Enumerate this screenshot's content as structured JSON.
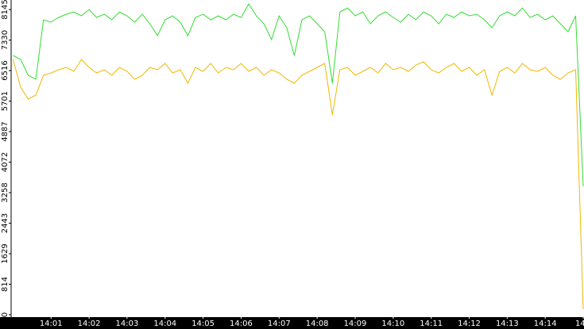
{
  "chart_data": {
    "type": "line",
    "x": [
      0,
      0.2,
      0.4,
      0.6,
      0.8,
      1,
      1.2,
      1.4,
      1.6,
      1.8,
      2,
      2.2,
      2.4,
      2.6,
      2.8,
      3,
      3.2,
      3.4,
      3.6,
      3.8,
      4,
      4.2,
      4.4,
      4.6,
      4.8,
      5,
      5.2,
      5.4,
      5.6,
      5.8,
      6,
      6.2,
      6.4,
      6.6,
      6.8,
      7,
      7.2,
      7.4,
      7.6,
      7.8,
      8,
      8.2,
      8.4,
      8.6,
      8.8,
      9,
      9.2,
      9.4,
      9.6,
      9.8,
      10,
      10.2,
      10.4,
      10.6,
      10.8,
      11,
      11.2,
      11.4,
      11.6,
      11.8,
      12,
      12.2,
      12.4,
      12.6,
      12.8,
      13,
      13.2,
      13.4,
      13.6,
      13.8,
      14,
      14.2,
      14.4,
      14.6,
      14.8,
      15
    ],
    "series": [
      {
        "color": "#33dd33",
        "values": [
          6919,
          6813,
          6390,
          6284,
          7871,
          7808,
          7935,
          8019,
          8083,
          7977,
          8146,
          7935,
          8019,
          7871,
          8083,
          7977,
          7808,
          8019,
          7765,
          7448,
          7871,
          7977,
          7808,
          7448,
          7935,
          8019,
          7871,
          7977,
          7871,
          8019,
          7935,
          8295,
          7977,
          7765,
          7342,
          7977,
          7660,
          6919,
          7871,
          7977,
          7765,
          7554,
          6178,
          8083,
          8189,
          7977,
          8083,
          7765,
          7977,
          8083,
          7935,
          7808,
          8019,
          7871,
          8083,
          7977,
          7765,
          8019,
          7935,
          8083,
          7977,
          8019,
          7871,
          7660,
          7977,
          8083,
          7977,
          8189,
          7935,
          8019,
          7871,
          7977,
          7765,
          7554,
          7977,
          3428
        ]
      },
      {
        "color": "#f0b800",
        "values": [
          6813,
          6073,
          5755,
          5861,
          6390,
          6453,
          6538,
          6601,
          6496,
          6813,
          6601,
          6453,
          6538,
          6390,
          6601,
          6496,
          6284,
          6390,
          6601,
          6538,
          6707,
          6453,
          6538,
          6178,
          6601,
          6496,
          6707,
          6453,
          6601,
          6538,
          6707,
          6496,
          6601,
          6390,
          6538,
          6453,
          6284,
          6178,
          6390,
          6496,
          6601,
          6707,
          5332,
          6538,
          6601,
          6390,
          6496,
          6601,
          6453,
          6707,
          6538,
          6601,
          6496,
          6665,
          6750,
          6538,
          6453,
          6601,
          6707,
          6496,
          6601,
          6390,
          6538,
          5861,
          6496,
          6601,
          6453,
          6707,
          6538,
          6496,
          6601,
          6390,
          6284,
          6453,
          6538,
          150
        ]
      }
    ],
    "xlim": [
      -0.05,
      15.02
    ],
    "xticks": [
      {
        "value": 1,
        "label": "14:01"
      },
      {
        "value": 2,
        "label": "14:02"
      },
      {
        "value": 3,
        "label": "14:03"
      },
      {
        "value": 4,
        "label": "14:04"
      },
      {
        "value": 5,
        "label": "14:05"
      },
      {
        "value": 6,
        "label": "14:06"
      },
      {
        "value": 7,
        "label": "14:07"
      },
      {
        "value": 8,
        "label": "14:08"
      },
      {
        "value": 9,
        "label": "14:09"
      },
      {
        "value": 10,
        "label": "14:10"
      },
      {
        "value": 11,
        "label": "14:11"
      },
      {
        "value": 12,
        "label": "14:12"
      },
      {
        "value": 13,
        "label": "14:13"
      },
      {
        "value": 14,
        "label": "14:14"
      },
      {
        "value": 15,
        "label": "14"
      }
    ],
    "ylim": [
      0,
      8400
    ],
    "yticks": [
      0,
      814,
      1629,
      2443,
      3258,
      4072,
      4887,
      5701,
      6516,
      7330,
      8145
    ]
  }
}
